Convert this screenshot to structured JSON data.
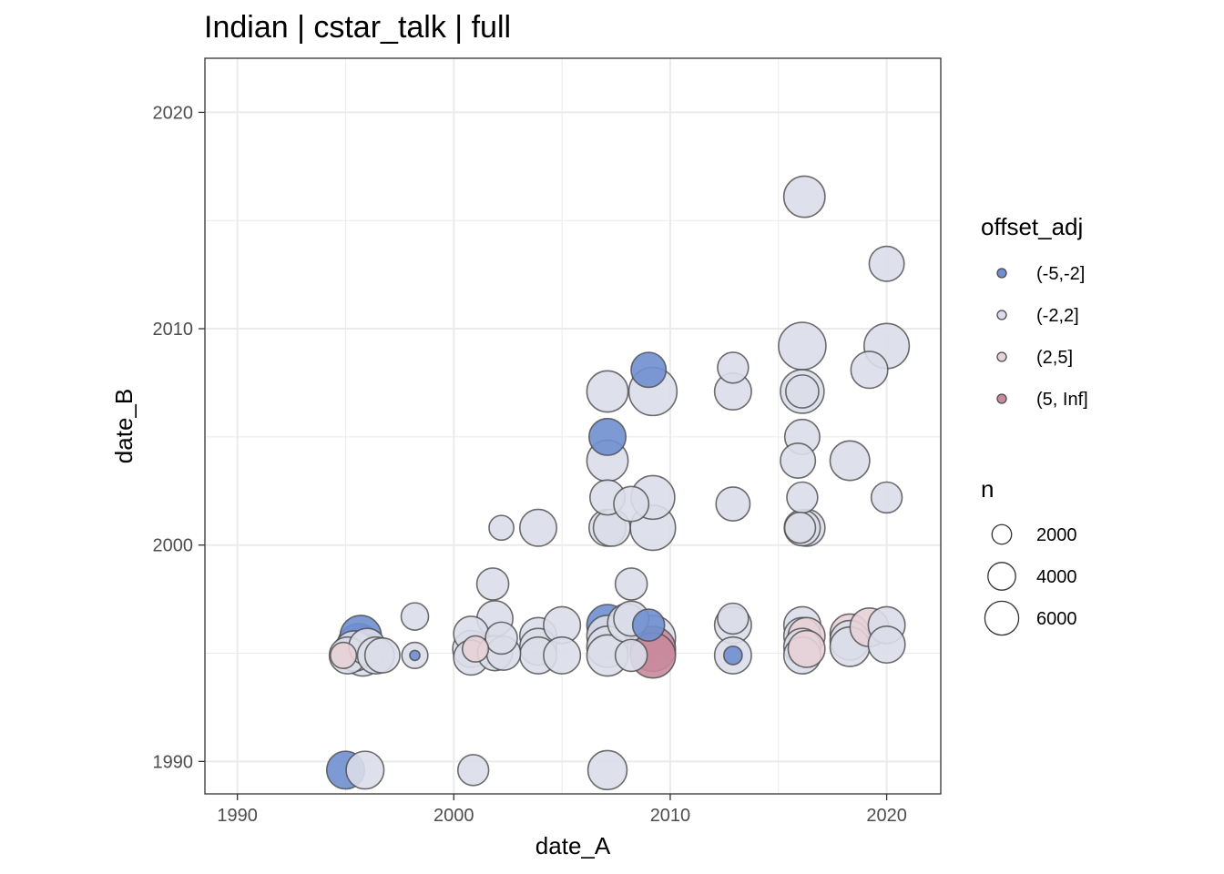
{
  "chart_data": {
    "type": "scatter",
    "title": "Indian | cstar_talk | full",
    "xlabel": "date_A",
    "ylabel": "date_B",
    "xlim": [
      1988.5,
      2022.5
    ],
    "ylim": [
      1988.5,
      2022.5
    ],
    "x_ticks": [
      1990,
      2000,
      2010,
      2020
    ],
    "y_ticks": [
      1990,
      2000,
      2010,
      2020
    ],
    "x_tick_labels": [
      "1990",
      "2000",
      "2010",
      "2020"
    ],
    "y_tick_labels": [
      "1990",
      "2000",
      "2010",
      "2020"
    ],
    "grid": true,
    "colors": {
      "(-5,-2]": "#6f8fd0",
      "(-2,2]": "#dadde9",
      "(2,5]": "#e7d2d8",
      "(5, Inf]": "#c98a9d"
    },
    "legend_color": {
      "title": "offset_adj",
      "entries": [
        "(-5,-2]",
        "(-2,2]",
        "(2,5]",
        "(5, Inf]"
      ]
    },
    "legend_size": {
      "title": "n",
      "values": [
        2000,
        4000,
        6000
      ],
      "labels": [
        "2000",
        "4000",
        "6000"
      ]
    },
    "points": [
      {
        "x": 1995.0,
        "y": 1989.6,
        "n": 4200,
        "g": "(-5,-2]"
      },
      {
        "x": 1995.9,
        "y": 1989.6,
        "n": 4200,
        "g": "(-2,2]"
      },
      {
        "x": 2000.9,
        "y": 1989.6,
        "n": 2800,
        "g": "(-2,2]"
      },
      {
        "x": 2007.1,
        "y": 1989.6,
        "n": 4500,
        "g": "(-2,2]"
      },
      {
        "x": 1995.1,
        "y": 1994.9,
        "n": 4000,
        "g": "(-2,2]"
      },
      {
        "x": 1994.9,
        "y": 1994.9,
        "n": 2000,
        "g": "(2,5]"
      },
      {
        "x": 1995.4,
        "y": 1995.1,
        "n": 4800,
        "g": "(-2,2]"
      },
      {
        "x": 1995.6,
        "y": 1995.4,
        "n": 5200,
        "g": "(-5,-2]"
      },
      {
        "x": 1995.7,
        "y": 1995.8,
        "n": 5000,
        "g": "(-5,-2]"
      },
      {
        "x": 1995.8,
        "y": 1994.9,
        "n": 5000,
        "g": "(-2,2]"
      },
      {
        "x": 1996.0,
        "y": 1995.3,
        "n": 4000,
        "g": "(-2,2]"
      },
      {
        "x": 1996.4,
        "y": 1994.9,
        "n": 4000,
        "g": "(-2,2]"
      },
      {
        "x": 1996.7,
        "y": 1994.9,
        "n": 3600,
        "g": "(-2,2]"
      },
      {
        "x": 1998.2,
        "y": 1996.7,
        "n": 2200,
        "g": "(-2,2]"
      },
      {
        "x": 1998.2,
        "y": 1994.9,
        "n": 2000,
        "g": "(-2,2]"
      },
      {
        "x": 1998.2,
        "y": 1994.9,
        "n": 300,
        "g": "(-5,-2]"
      },
      {
        "x": 2000.8,
        "y": 1995.9,
        "n": 3600,
        "g": "(-2,2]"
      },
      {
        "x": 2000.8,
        "y": 1995.2,
        "n": 4000,
        "g": "(-2,2]"
      },
      {
        "x": 2000.8,
        "y": 1994.8,
        "n": 3600,
        "g": "(-2,2]"
      },
      {
        "x": 2001.0,
        "y": 1995.2,
        "n": 2000,
        "g": "(2,5]"
      },
      {
        "x": 2001.8,
        "y": 1998.2,
        "n": 3000,
        "g": "(-2,2]"
      },
      {
        "x": 2001.9,
        "y": 1996.6,
        "n": 3800,
        "g": "(-2,2]"
      },
      {
        "x": 2001.9,
        "y": 1995.0,
        "n": 3600,
        "g": "(-2,2]"
      },
      {
        "x": 2002.2,
        "y": 2000.8,
        "n": 1800,
        "g": "(-2,2]"
      },
      {
        "x": 2002.2,
        "y": 1995.7,
        "n": 3000,
        "g": "(-2,2]"
      },
      {
        "x": 2002.3,
        "y": 1995.0,
        "n": 3400,
        "g": "(-2,2]"
      },
      {
        "x": 2003.9,
        "y": 2000.8,
        "n": 4000,
        "g": "(-2,2]"
      },
      {
        "x": 2003.9,
        "y": 1995.8,
        "n": 4000,
        "g": "(-2,2]"
      },
      {
        "x": 2003.9,
        "y": 1995.3,
        "n": 4000,
        "g": "(-2,2]"
      },
      {
        "x": 2003.9,
        "y": 1994.9,
        "n": 4000,
        "g": "(-2,2]"
      },
      {
        "x": 2005.0,
        "y": 1996.3,
        "n": 4000,
        "g": "(-2,2]"
      },
      {
        "x": 2005.0,
        "y": 1994.9,
        "n": 4000,
        "g": "(-2,2]"
      },
      {
        "x": 2007.1,
        "y": 2007.1,
        "n": 5000,
        "g": "(-2,2]"
      },
      {
        "x": 2007.1,
        "y": 2005.0,
        "n": 4000,
        "g": "(-5,-2]"
      },
      {
        "x": 2007.1,
        "y": 2003.9,
        "n": 5000,
        "g": "(-2,2]"
      },
      {
        "x": 2007.1,
        "y": 2002.2,
        "n": 3600,
        "g": "(-2,2]"
      },
      {
        "x": 2007.1,
        "y": 2000.8,
        "n": 4000,
        "g": "(-2,2]"
      },
      {
        "x": 2007.3,
        "y": 2000.8,
        "n": 4000,
        "g": "(-2,2]"
      },
      {
        "x": 2007.1,
        "y": 1996.3,
        "n": 5000,
        "g": "(-5,-2]"
      },
      {
        "x": 2007.1,
        "y": 1995.8,
        "n": 5000,
        "g": "(-2,2]"
      },
      {
        "x": 2007.1,
        "y": 1995.3,
        "n": 5000,
        "g": "(-2,2]"
      },
      {
        "x": 2007.1,
        "y": 1994.9,
        "n": 5000,
        "g": "(-2,2]"
      },
      {
        "x": 2008.2,
        "y": 2001.9,
        "n": 3600,
        "g": "(-2,2]"
      },
      {
        "x": 2008.2,
        "y": 1998.2,
        "n": 3000,
        "g": "(-2,2]"
      },
      {
        "x": 2008.2,
        "y": 1996.6,
        "n": 3600,
        "g": "(-2,2]"
      },
      {
        "x": 2008.0,
        "y": 1996.4,
        "n": 4400,
        "g": "(-2,2]"
      },
      {
        "x": 2008.2,
        "y": 1994.9,
        "n": 3000,
        "g": "(-2,2]"
      },
      {
        "x": 2009.0,
        "y": 2008.1,
        "n": 3600,
        "g": "(-5,-2]"
      },
      {
        "x": 2009.2,
        "y": 2007.1,
        "n": 6800,
        "g": "(-2,2]"
      },
      {
        "x": 2009.2,
        "y": 2002.2,
        "n": 5600,
        "g": "(-2,2]"
      },
      {
        "x": 2009.2,
        "y": 2000.8,
        "n": 6000,
        "g": "(-2,2]"
      },
      {
        "x": 2009.0,
        "y": 1996.3,
        "n": 3000,
        "g": "(-5,-2]"
      },
      {
        "x": 2009.2,
        "y": 1995.7,
        "n": 6000,
        "g": "(-2,2]"
      },
      {
        "x": 2009.2,
        "y": 1995.2,
        "n": 6000,
        "g": "(5, Inf]"
      },
      {
        "x": 2009.2,
        "y": 1994.9,
        "n": 6000,
        "g": "(5, Inf]"
      },
      {
        "x": 2012.9,
        "y": 2008.2,
        "n": 2800,
        "g": "(-2,2]"
      },
      {
        "x": 2012.9,
        "y": 2007.1,
        "n": 4000,
        "g": "(-2,2]"
      },
      {
        "x": 2012.9,
        "y": 2001.9,
        "n": 3400,
        "g": "(-2,2]"
      },
      {
        "x": 2012.9,
        "y": 1996.6,
        "n": 2800,
        "g": "(-2,2]"
      },
      {
        "x": 2012.9,
        "y": 1996.3,
        "n": 4000,
        "g": "(-2,2]"
      },
      {
        "x": 2012.9,
        "y": 1994.9,
        "n": 4000,
        "g": "(-2,2]"
      },
      {
        "x": 2012.9,
        "y": 1994.9,
        "n": 1000,
        "g": "(-5,-2]"
      },
      {
        "x": 2016.2,
        "y": 2016.1,
        "n": 5000,
        "g": "(-2,2]"
      },
      {
        "x": 2016.1,
        "y": 2009.2,
        "n": 6600,
        "g": "(-2,2]"
      },
      {
        "x": 2016.1,
        "y": 2007.1,
        "n": 5600,
        "g": "(-2,2]"
      },
      {
        "x": 2016.1,
        "y": 2007.1,
        "n": 3200,
        "g": "(-2,2]"
      },
      {
        "x": 2016.1,
        "y": 2005.0,
        "n": 3600,
        "g": "(-2,2]"
      },
      {
        "x": 2015.9,
        "y": 2003.9,
        "n": 3600,
        "g": "(-2,2]"
      },
      {
        "x": 2016.1,
        "y": 2002.2,
        "n": 2800,
        "g": "(-2,2]"
      },
      {
        "x": 2016.1,
        "y": 2000.8,
        "n": 3800,
        "g": "(-2,2]"
      },
      {
        "x": 2016.0,
        "y": 2000.8,
        "n": 2800,
        "g": "(-2,2]"
      },
      {
        "x": 2016.3,
        "y": 2000.8,
        "n": 4000,
        "g": "(-2,2]"
      },
      {
        "x": 2016.1,
        "y": 1996.3,
        "n": 4000,
        "g": "(-2,2]"
      },
      {
        "x": 2016.1,
        "y": 1995.8,
        "n": 4000,
        "g": "(-2,2]"
      },
      {
        "x": 2016.3,
        "y": 1995.8,
        "n": 4000,
        "g": "(2,5]"
      },
      {
        "x": 2016.1,
        "y": 1995.3,
        "n": 4000,
        "g": "(-2,2]"
      },
      {
        "x": 2016.1,
        "y": 1994.9,
        "n": 4000,
        "g": "(-2,2]"
      },
      {
        "x": 2016.3,
        "y": 1995.2,
        "n": 4000,
        "g": "(2,5]"
      },
      {
        "x": 2018.3,
        "y": 2003.9,
        "n": 4600,
        "g": "(-2,2]"
      },
      {
        "x": 2018.3,
        "y": 1995.9,
        "n": 4600,
        "g": "(2,5]"
      },
      {
        "x": 2018.3,
        "y": 1995.6,
        "n": 4600,
        "g": "(-2,2]"
      },
      {
        "x": 2018.3,
        "y": 1995.3,
        "n": 4600,
        "g": "(-2,2]"
      },
      {
        "x": 2019.2,
        "y": 2008.1,
        "n": 4000,
        "g": "(-2,2]"
      },
      {
        "x": 2019.2,
        "y": 1996.2,
        "n": 4400,
        "g": "(2,5]"
      },
      {
        "x": 2020.0,
        "y": 2013.0,
        "n": 3600,
        "g": "(-2,2]"
      },
      {
        "x": 2020.0,
        "y": 2009.2,
        "n": 6000,
        "g": "(-2,2]"
      },
      {
        "x": 2020.0,
        "y": 2002.2,
        "n": 2800,
        "g": "(-2,2]"
      },
      {
        "x": 2020.0,
        "y": 1996.3,
        "n": 4000,
        "g": "(-2,2]"
      },
      {
        "x": 2020.0,
        "y": 1995.4,
        "n": 4000,
        "g": "(-2,2]"
      }
    ]
  }
}
